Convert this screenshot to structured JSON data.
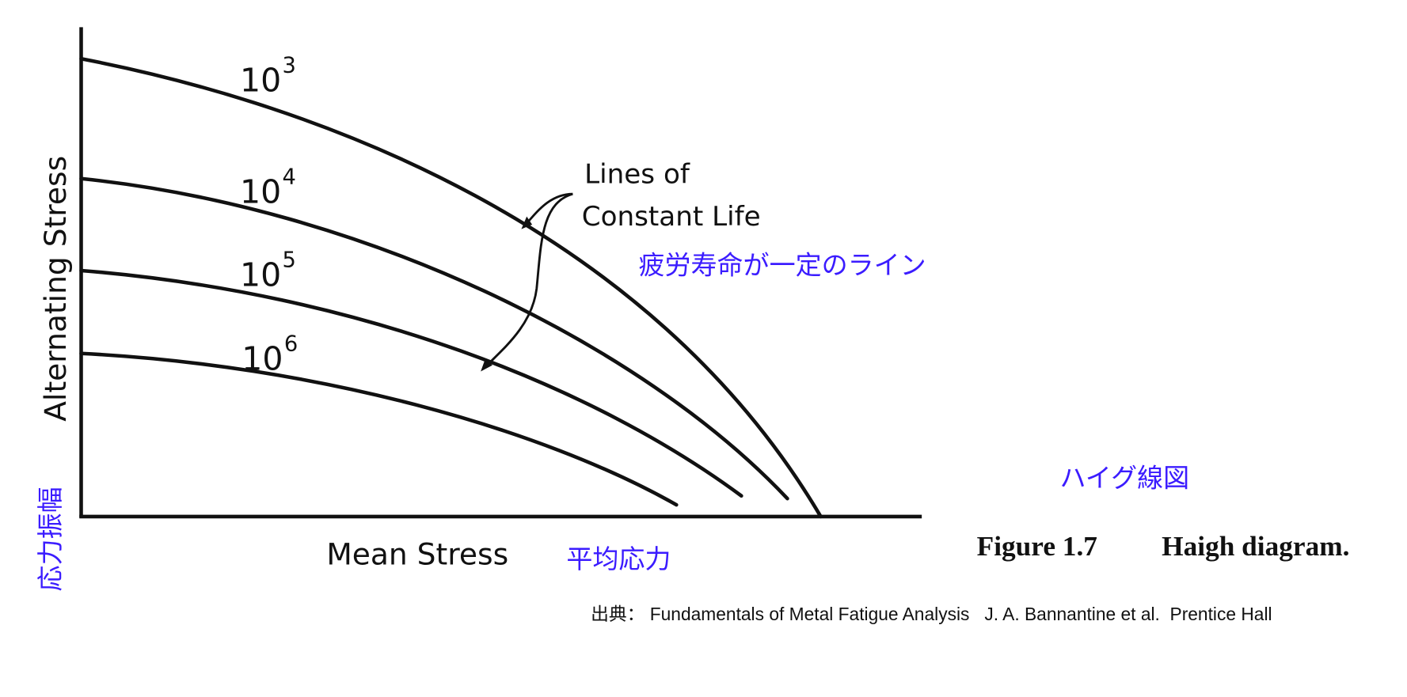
{
  "diagram": {
    "y_axis_label": "Alternating Stress",
    "x_axis_label": "Mean Stress",
    "curves": [
      {
        "base": "10",
        "exponent": "3"
      },
      {
        "base": "10",
        "exponent": "4"
      },
      {
        "base": "10",
        "exponent": "5"
      },
      {
        "base": "10",
        "exponent": "6"
      }
    ],
    "annotation": [
      "Lines of",
      "Constant Life"
    ],
    "annotation_ja": "疲労寿命が一定のライン",
    "title_ja": "ハイグ線図",
    "y_axis_label_ja": "応力振幅",
    "x_axis_label_ja": "平均応力",
    "caption": {
      "number": "Figure 1.7",
      "text": "Haigh diagram."
    },
    "source": "出典： Fundamentals of Metal Fatigue Analysis   J. A. Bannantine et al.  Prentice Hall"
  }
}
